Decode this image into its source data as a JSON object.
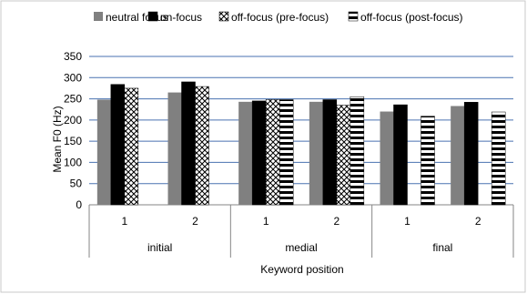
{
  "chart_data": {
    "type": "bar",
    "title": "",
    "xlabel": "Keyword position",
    "ylabel": "Mean F0 (Hz)",
    "ylim": [
      0,
      350
    ],
    "yticks": [
      0,
      50,
      100,
      150,
      200,
      250,
      300,
      350
    ],
    "grid": true,
    "legend_position": "top",
    "groups": [
      {
        "label": "initial",
        "categories": [
          "1",
          "2"
        ]
      },
      {
        "label": "medial",
        "categories": [
          "1",
          "2"
        ]
      },
      {
        "label": "final",
        "categories": [
          "1",
          "2"
        ]
      }
    ],
    "series": [
      {
        "name": "neutral focus",
        "pattern": "solid-gray",
        "color": "#808080",
        "values": [
          248,
          265,
          243,
          243,
          220,
          233
        ]
      },
      {
        "name": "on-focus",
        "pattern": "solid-black",
        "color": "#000000",
        "values": [
          284,
          290,
          245,
          248,
          236,
          242
        ]
      },
      {
        "name": "off-focus (pre-focus)",
        "pattern": "checker",
        "color": "#000000",
        "values": [
          275,
          279,
          248,
          235,
          null,
          null
        ]
      },
      {
        "name": "off-focus (post-focus)",
        "pattern": "horizontal-stripes",
        "color": "#000000",
        "values": [
          null,
          null,
          248,
          255,
          209,
          219
        ]
      }
    ]
  }
}
